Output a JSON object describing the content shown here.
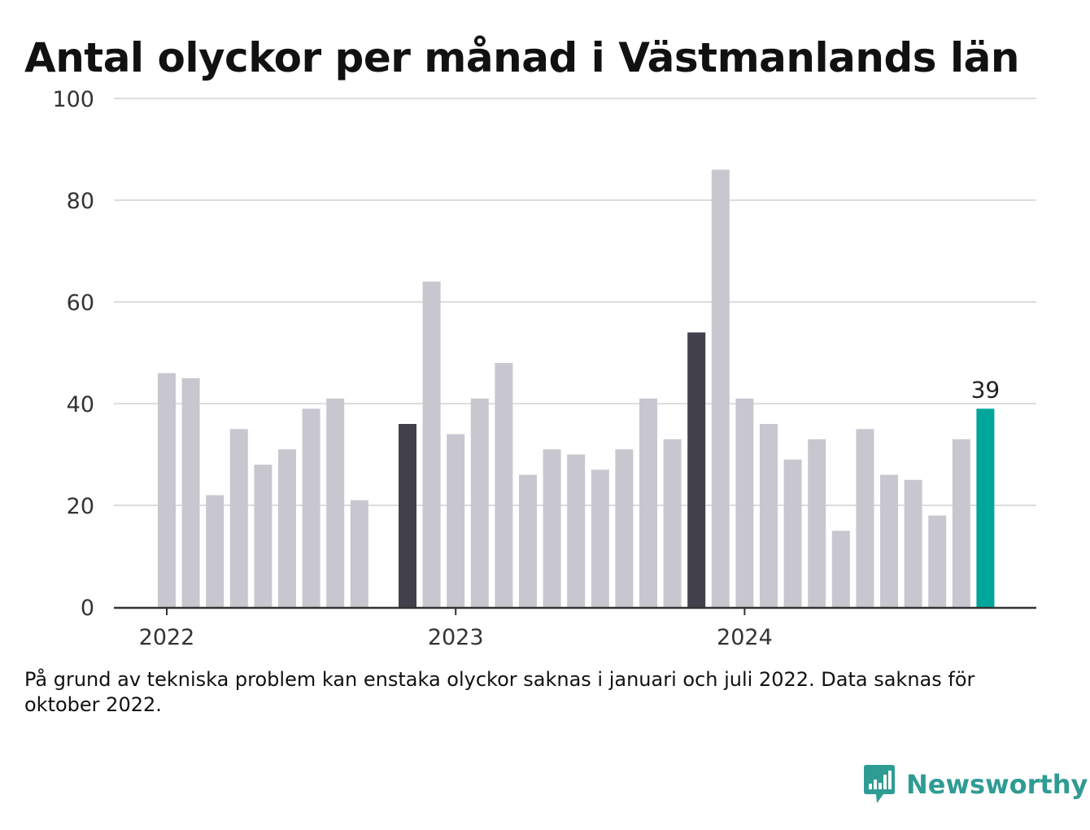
{
  "title": "Antal olyckor per månad i Västmanlands län",
  "footnote": "På grund av tekniska problem kan enstaka olyckor saknas i januari och juli 2022. Data saknas för oktober 2022.",
  "brand": {
    "name": "Newsworthy",
    "logo_icon": "bar-chart-bubble-icon"
  },
  "colors": {
    "default_bar": "#c8c7d0",
    "highlight_bar": "#41404b",
    "latest_bar": "#00a69a",
    "gridline": "#dddddd",
    "baseline": "#333333",
    "brand": "#2f9c94"
  },
  "chart_data": {
    "type": "bar",
    "title": "Antal olyckor per månad i Västmanlands län",
    "xlabel": "",
    "ylabel": "",
    "ylim": [
      0,
      100
    ],
    "yticks": [
      0,
      20,
      40,
      60,
      80,
      100
    ],
    "xticks": [
      {
        "label": "2022",
        "month": "2022-01"
      },
      {
        "label": "2023",
        "month": "2023-01"
      },
      {
        "label": "2024",
        "month": "2024-01"
      }
    ],
    "grid": true,
    "months": [
      "2022-01",
      "2022-02",
      "2022-03",
      "2022-04",
      "2022-05",
      "2022-06",
      "2022-07",
      "2022-08",
      "2022-09",
      "2022-10",
      "2022-11",
      "2022-12",
      "2023-01",
      "2023-02",
      "2023-03",
      "2023-04",
      "2023-05",
      "2023-06",
      "2023-07",
      "2023-08",
      "2023-09",
      "2023-10",
      "2023-11",
      "2023-12",
      "2024-01",
      "2024-02",
      "2024-03",
      "2024-04",
      "2024-05",
      "2024-06",
      "2024-07",
      "2024-08",
      "2024-09",
      "2024-10",
      "2024-11",
      "2024-12"
    ],
    "values": [
      46,
      45,
      22,
      35,
      28,
      31,
      39,
      41,
      21,
      null,
      36,
      64,
      34,
      41,
      48,
      26,
      31,
      30,
      27,
      31,
      41,
      33,
      54,
      86,
      41,
      36,
      29,
      33,
      15,
      35,
      26,
      25,
      18,
      33,
      39,
      null
    ],
    "highlighted_months": [
      "2022-11",
      "2023-11"
    ],
    "latest": {
      "month": "2024-11",
      "value": 39,
      "label": "39"
    }
  }
}
